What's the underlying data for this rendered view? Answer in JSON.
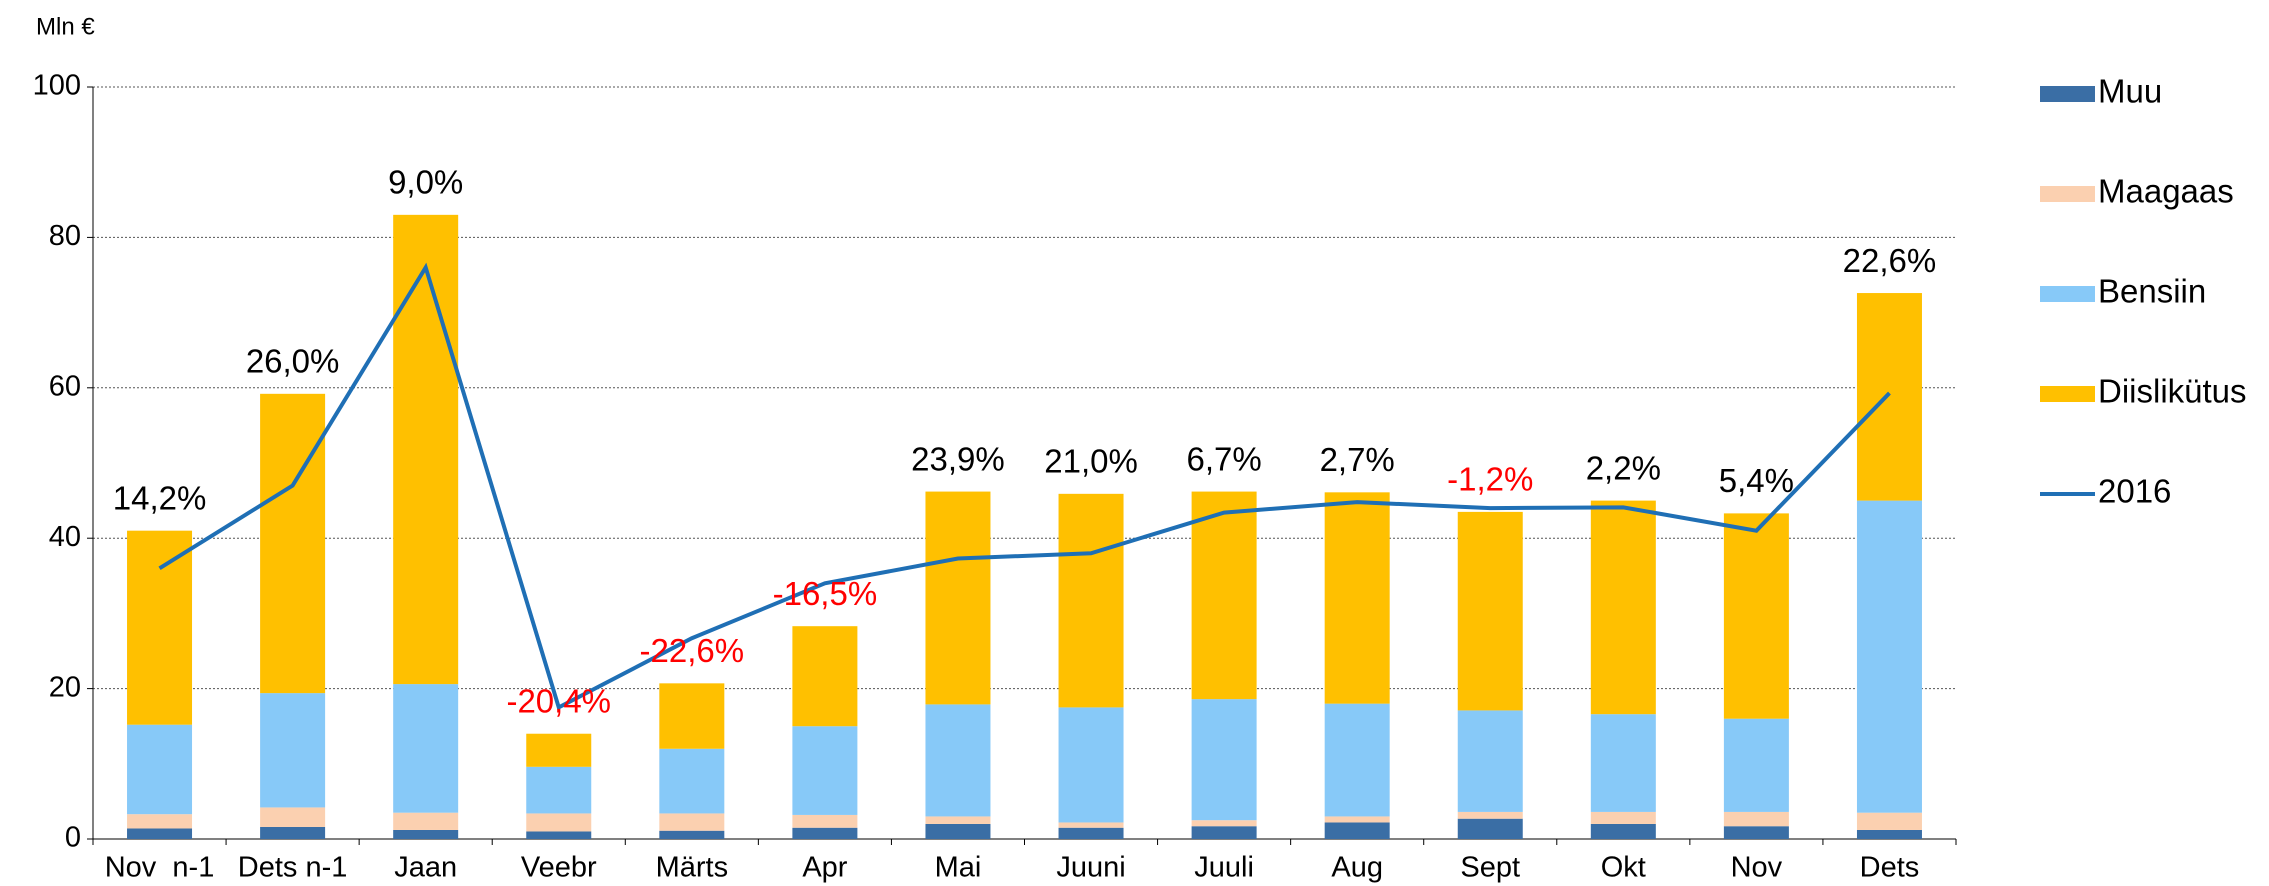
{
  "chart_data": {
    "type": "bar",
    "stacked": true,
    "y_label": "Mln €",
    "categories": [
      "Nov  n-1",
      "Dets n-1",
      "Jaan",
      "Veebr",
      "Märts",
      "Apr",
      "Mai",
      "Juuni",
      "Juuli",
      "Aug",
      "Sept",
      "Okt",
      "Nov",
      "Dets"
    ],
    "series": [
      {
        "name": "Muu",
        "color": "#3a6ea5",
        "values": [
          1.4,
          1.6,
          1.2,
          1.0,
          1.1,
          1.5,
          2.0,
          1.5,
          1.7,
          2.2,
          2.7,
          2.0,
          1.7,
          1.2
        ]
      },
      {
        "name": "Maagaas",
        "color": "#fbd0b0",
        "values": [
          1.9,
          2.6,
          2.3,
          2.4,
          2.3,
          1.7,
          1.0,
          0.7,
          0.8,
          0.8,
          0.9,
          1.6,
          1.9,
          2.3
        ]
      },
      {
        "name": "Bensiin",
        "color": "#87c9f8",
        "values": [
          11.9,
          15.2,
          17.1,
          6.2,
          8.6,
          11.8,
          14.9,
          15.3,
          16.1,
          15.0,
          13.5,
          13.0,
          12.4,
          41.5
        ]
      },
      {
        "name": "Diislikütus",
        "color": "#ffc000",
        "values": [
          25.8,
          39.8,
          62.4,
          4.4,
          8.7,
          13.3,
          28.3,
          28.4,
          27.6,
          28.1,
          26.4,
          28.4,
          27.3,
          27.6
        ]
      },
      {
        "name": "2016",
        "type": "line",
        "color": "#1f6fb5",
        "values": [
          36,
          47,
          76,
          17.5,
          26.7,
          34,
          37.3,
          38,
          43.4,
          44.8,
          44,
          44.1,
          41,
          59.3
        ]
      }
    ],
    "annotations": [
      "14,2%",
      "26,0%",
      "9,0%",
      "-20,4%",
      "-22,6%",
      "-16,5%",
      "23,9%",
      "21,0%",
      "6,7%",
      "2,7%",
      "-1,2%",
      "2,2%",
      "5,4%",
      "22,6%"
    ],
    "annotation_colors": [
      "#000000",
      "#000000",
      "#000000",
      "#ff0000",
      "#ff0000",
      "#ff0000",
      "#000000",
      "#000000",
      "#000000",
      "#000000",
      "#ff0000",
      "#000000",
      "#000000",
      "#000000"
    ],
    "ylim": [
      0,
      100
    ],
    "yticks": [
      0,
      20,
      40,
      60,
      80,
      100
    ],
    "grid": true,
    "legend": "right"
  }
}
